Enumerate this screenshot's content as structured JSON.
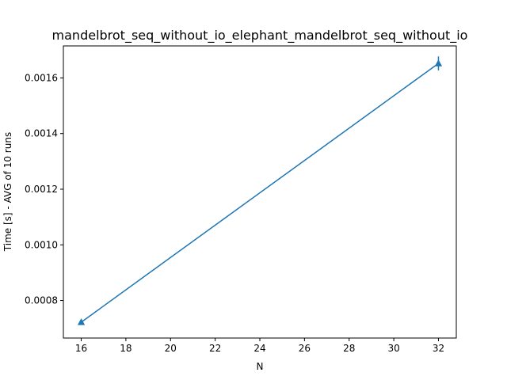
{
  "chart_data": {
    "type": "line",
    "title": "mandelbrot_seq_without_io_elephant_mandelbrot_seq_without_io",
    "xlabel": "N",
    "ylabel": "Time [s] - AVG of 10 runs",
    "xlim": [
      15.2,
      32.8
    ],
    "ylim": [
      0.000665,
      0.001715
    ],
    "x_ticks": [
      16,
      18,
      20,
      22,
      24,
      26,
      28,
      30,
      32
    ],
    "x_tick_labels": [
      "16",
      "18",
      "20",
      "22",
      "24",
      "26",
      "28",
      "30",
      "32"
    ],
    "y_ticks": [
      0.0008,
      0.001,
      0.0012,
      0.0014,
      0.0016
    ],
    "y_tick_labels": [
      "0.0008",
      "0.0010",
      "0.0012",
      "0.0014",
      "0.0016"
    ],
    "grid": false,
    "series": [
      {
        "x": [
          16,
          32
        ],
        "y": [
          0.000722,
          0.001652
        ],
        "yerr": [
          8e-06,
          2.5e-05
        ],
        "marker": "triangle-up",
        "color": "#1f77b4"
      }
    ]
  }
}
